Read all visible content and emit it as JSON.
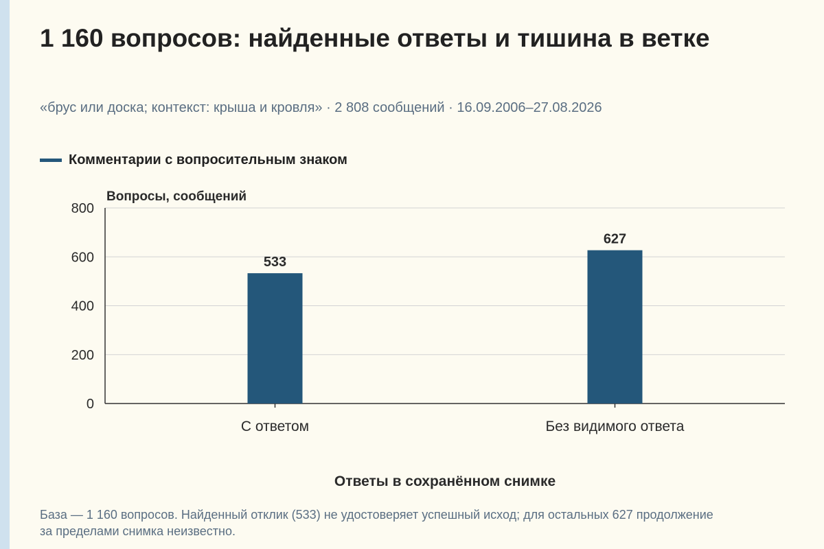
{
  "header": {
    "title": "1 160 вопросов: найденные ответы и тишина в ветке",
    "subtitle": "«брус или доска; контекст: крыша и кровля» · 2 808 сообщений · 16.09.2006–27.08.2026"
  },
  "legend": {
    "label": "Комментарии с вопросительным знаком",
    "color": "#24577a"
  },
  "chart_data": {
    "type": "bar",
    "categories": [
      "С ответом",
      "Без видимого ответа"
    ],
    "series": [
      {
        "name": "Комментарии с вопросительным знаком",
        "values": [
          533,
          627
        ],
        "color": "#24577a"
      }
    ],
    "data_labels": [
      "533",
      "627"
    ],
    "ylabel": "Вопросы, сообщений",
    "xlabel": "Ответы в сохранённом снимке",
    "ylim": [
      0,
      800
    ],
    "yticks": [
      0,
      200,
      400,
      600,
      800
    ],
    "grid": true,
    "legend_position": "top-left"
  },
  "footer": {
    "note": "База — 1 160 вопросов. Найденный отклик (533) не удостоверяет успешный исход; для остальных 627 продолжение за пределами снимка неизвестно."
  }
}
